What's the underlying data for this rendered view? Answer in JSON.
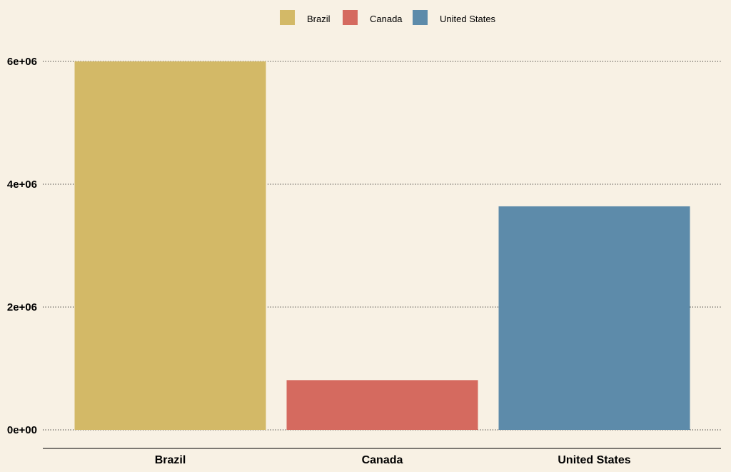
{
  "chart_data": {
    "type": "bar",
    "categories": [
      "Brazil",
      "Canada",
      "United States"
    ],
    "values": [
      6000000,
      810000,
      3640000
    ],
    "colors": [
      "#d3b967",
      "#d56a5f",
      "#5d8baa"
    ],
    "title": "",
    "xlabel": "",
    "ylabel": "",
    "ylim": [
      0,
      6000000
    ],
    "yticks": [
      0,
      2000000,
      4000000,
      6000000
    ],
    "ytick_labels": [
      "0e+00",
      "2e+06",
      "4e+06",
      "6e+06"
    ],
    "grid": "horizontal-dotted",
    "legend": {
      "placement": "top-center",
      "entries": [
        "Brazil",
        "Canada",
        "United States"
      ]
    },
    "background": "#f8f1e4"
  }
}
